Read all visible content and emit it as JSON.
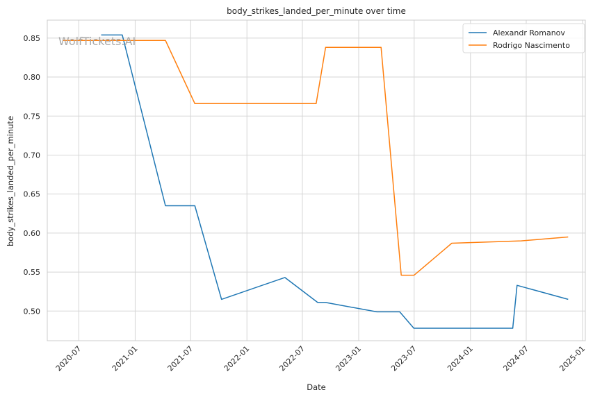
{
  "watermark": "WolfTickets.AI",
  "chart_data": {
    "type": "line",
    "title": "body_strikes_landed_per_minute over time",
    "xlabel": "Date",
    "ylabel": "body_strikes_landed_per_minute",
    "x_type": "date",
    "xlim": [
      "2020-03-20",
      "2025-01-10"
    ],
    "ylim": [
      0.462,
      0.873
    ],
    "x_ticks": [
      "2020-07-01",
      "2021-01-01",
      "2021-07-01",
      "2022-01-01",
      "2022-07-01",
      "2023-01-01",
      "2023-07-01",
      "2024-01-01",
      "2024-07-01",
      "2025-01-01"
    ],
    "x_tick_labels": [
      "2020-07",
      "2021-01",
      "2021-07",
      "2022-01",
      "2022-07",
      "2023-01",
      "2023-07",
      "2024-01",
      "2024-07",
      "2025-01"
    ],
    "y_ticks": [
      0.5,
      0.55,
      0.6,
      0.65,
      0.7,
      0.75,
      0.8,
      0.85
    ],
    "y_tick_labels": [
      "0.50",
      "0.55",
      "0.60",
      "0.65",
      "0.70",
      "0.75",
      "0.80",
      "0.85"
    ],
    "grid": true,
    "legend_position": "top-right",
    "series": [
      {
        "name": "Alexandr Romanov",
        "color": "#1f77b4",
        "points": [
          [
            "2020-09-12",
            0.854
          ],
          [
            "2020-11-20",
            0.854
          ],
          [
            "2021-04-10",
            0.635
          ],
          [
            "2021-07-15",
            0.635
          ],
          [
            "2021-10-10",
            0.515
          ],
          [
            "2022-05-05",
            0.543
          ],
          [
            "2022-08-20",
            0.511
          ],
          [
            "2022-09-15",
            0.511
          ],
          [
            "2023-03-01",
            0.499
          ],
          [
            "2023-05-15",
            0.499
          ],
          [
            "2023-06-30",
            0.478
          ],
          [
            "2024-05-18",
            0.478
          ],
          [
            "2024-06-01",
            0.533
          ],
          [
            "2024-11-15",
            0.515
          ]
        ]
      },
      {
        "name": "Rodrigo Nascimento",
        "color": "#ff7f0e",
        "points": [
          [
            "2020-05-10",
            0.847
          ],
          [
            "2021-04-10",
            0.847
          ],
          [
            "2021-07-15",
            0.766
          ],
          [
            "2022-08-15",
            0.766
          ],
          [
            "2022-09-15",
            0.838
          ],
          [
            "2023-03-15",
            0.838
          ],
          [
            "2023-05-20",
            0.546
          ],
          [
            "2023-07-01",
            0.546
          ],
          [
            "2023-11-01",
            0.587
          ],
          [
            "2024-06-15",
            0.59
          ],
          [
            "2024-11-15",
            0.595
          ]
        ]
      }
    ]
  }
}
